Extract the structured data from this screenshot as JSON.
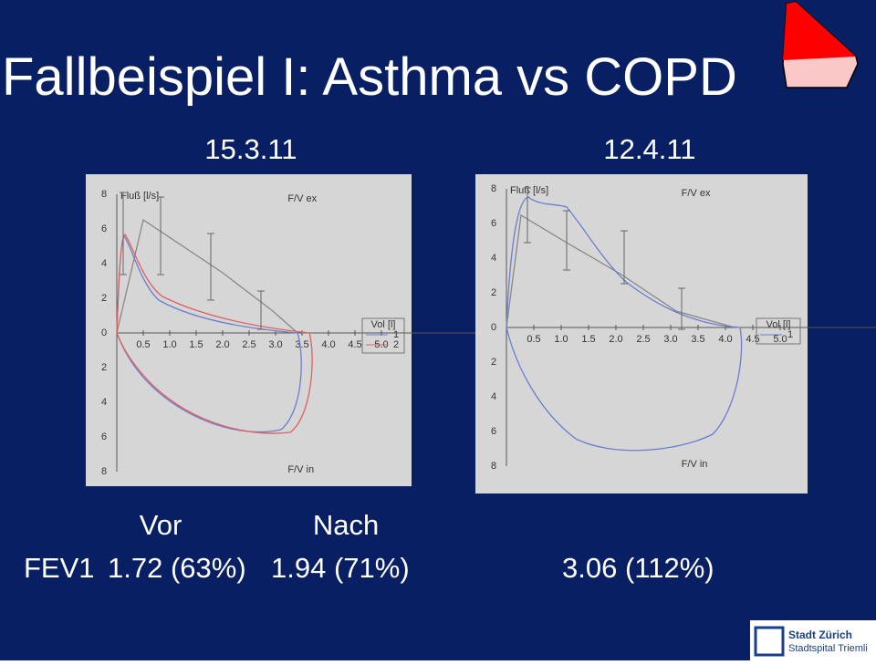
{
  "title": "Fallbeispiel I: Asthma vs COPD",
  "panels": [
    {
      "date": "15.3.11",
      "plot": {
        "y_label": "Fluß [l/s]",
        "top_label": "F/V ex",
        "bottom_label": "F/V in",
        "legend_title": "Vol [l]",
        "legend_entries": [
          "1",
          "2"
        ],
        "xticks": [
          "0.5",
          "1.0",
          "1.5",
          "2.0",
          "2.5",
          "3.0",
          "3.5",
          "4.0",
          "4.5",
          "5.0"
        ],
        "yticks_top": [
          "8",
          "6",
          "4",
          "2",
          "0"
        ],
        "yticks_bottom": [
          "2",
          "4",
          "6",
          "8"
        ]
      }
    },
    {
      "date": "12.4.11",
      "plot": {
        "y_label": "Fluß [l/s]",
        "top_label": "F/V ex",
        "bottom_label": "F/V in",
        "legend_title": "Vol [l]",
        "legend_entries": [
          "1"
        ],
        "xticks": [
          "0.5",
          "1.0",
          "1.5",
          "2.0",
          "2.5",
          "3.0",
          "3.5",
          "4.0",
          "4.5",
          "5.0"
        ],
        "yticks_top": [
          "8",
          "6",
          "4",
          "2",
          "0"
        ],
        "yticks_bottom": [
          "2",
          "4",
          "6",
          "8"
        ]
      }
    }
  ],
  "results": {
    "vor_label": "Vor",
    "nach_label": "Nach",
    "fev1_label": "FEV1",
    "vor": "1.72 (63%)",
    "nach": "1.94 (71%)",
    "followup": "3.06 (112%)"
  },
  "logo": {
    "line1": "Stadt Zürich",
    "line2": "Stadtspital Triemli"
  }
}
